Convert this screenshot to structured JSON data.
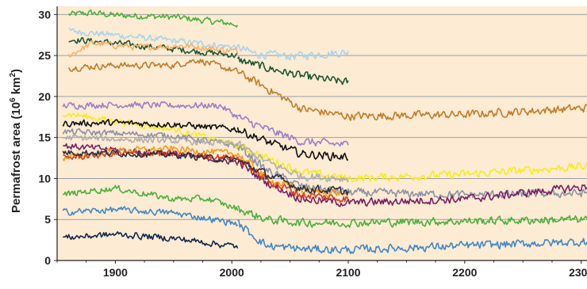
{
  "chart_data": {
    "type": "line",
    "title": "",
    "xlabel": "",
    "ylabel_main": "Permafrost area (10",
    "ylabel_exp": "6",
    "ylabel_unit": " km",
    "ylabel_sup": "2",
    "ylabel_close": ")",
    "xlim": [
      1850,
      2305
    ],
    "ylim": [
      0,
      31
    ],
    "x_ticks": [
      1900,
      2000,
      2100,
      2200,
      2300
    ],
    "x_tick_labels": [
      "1900",
      "2000",
      "2100",
      "2200",
      "2300"
    ],
    "y_ticks": [
      0,
      5,
      10,
      15,
      20,
      25,
      30
    ],
    "y_tick_labels": [
      "0",
      "5",
      "10",
      "15",
      "20",
      "25",
      "30"
    ],
    "grid": "horizontal",
    "background_color": "#fdebd3",
    "grid_color": "#9aa0a6",
    "series": [
      {
        "color": "#4caf3c",
        "end_x": 2005,
        "historical": [
          [
            1860,
            30.0
          ],
          [
            1880,
            30.2
          ],
          [
            1900,
            29.9
          ],
          [
            1950,
            29.7
          ],
          [
            2005,
            28.8
          ]
        ],
        "future": []
      },
      {
        "color": "#a9d4ea",
        "end_x": 2100,
        "historical": [
          [
            1860,
            28.0
          ],
          [
            1900,
            27.5
          ],
          [
            1950,
            26.8
          ],
          [
            2005,
            26.0
          ]
        ],
        "future": [
          [
            2005,
            26.0
          ],
          [
            2020,
            25.2
          ],
          [
            2050,
            24.9
          ],
          [
            2100,
            25.4
          ]
        ]
      },
      {
        "color": "#1e5631",
        "end_x": 2100,
        "historical": [
          [
            1860,
            27.0
          ],
          [
            1900,
            26.5
          ],
          [
            1950,
            25.8
          ],
          [
            2005,
            25.0
          ]
        ],
        "future": [
          [
            2005,
            24.5
          ],
          [
            2030,
            23.5
          ],
          [
            2060,
            22.5
          ],
          [
            2100,
            21.7
          ]
        ]
      },
      {
        "color": "#f6b26b",
        "end_x": 2005,
        "historical": [
          [
            1860,
            25.0
          ],
          [
            1880,
            26.5
          ],
          [
            1920,
            26.0
          ],
          [
            1960,
            26.2
          ],
          [
            2005,
            25.5
          ]
        ],
        "future": []
      },
      {
        "color": "#c27c2a",
        "end_x": 2305,
        "historical": [
          [
            1860,
            23.5
          ],
          [
            1900,
            23.8
          ],
          [
            1950,
            23.8
          ],
          [
            1970,
            24.5
          ],
          [
            2005,
            23.0
          ]
        ],
        "future": [
          [
            2005,
            23.0
          ],
          [
            2030,
            21.0
          ],
          [
            2060,
            18.5
          ],
          [
            2100,
            17.6
          ],
          [
            2200,
            17.8
          ],
          [
            2305,
            18.6
          ]
        ]
      },
      {
        "color": "#9b7fc7",
        "end_x": 2100,
        "historical": [
          [
            1855,
            18.9
          ],
          [
            1900,
            19.0
          ],
          [
            1950,
            18.9
          ],
          [
            1990,
            18.9
          ],
          [
            2005,
            17.5
          ]
        ],
        "future": [
          [
            2005,
            17.5
          ],
          [
            2030,
            16.0
          ],
          [
            2060,
            14.5
          ],
          [
            2100,
            14.1
          ]
        ]
      },
      {
        "color": "#f8ea21",
        "end_x": 2305,
        "historical": [
          [
            1855,
            18.0
          ],
          [
            1900,
            17.0
          ],
          [
            1950,
            16.0
          ],
          [
            2005,
            14.0
          ]
        ],
        "future": [
          [
            2005,
            14.0
          ],
          [
            2030,
            12.5
          ],
          [
            2060,
            10.8
          ],
          [
            2100,
            10.0
          ],
          [
            2200,
            10.5
          ],
          [
            2305,
            11.5
          ]
        ]
      },
      {
        "color": "#111111",
        "end_x": 2100,
        "historical": [
          [
            1855,
            16.7
          ],
          [
            1900,
            16.8
          ],
          [
            1950,
            16.6
          ],
          [
            2005,
            16.0
          ]
        ],
        "future": [
          [
            2005,
            16.0
          ],
          [
            2030,
            14.5
          ],
          [
            2060,
            13.0
          ],
          [
            2100,
            12.6
          ]
        ]
      },
      {
        "color": "#8c93a6",
        "end_x": 2305,
        "historical": [
          [
            1855,
            15.7
          ],
          [
            1900,
            15.5
          ],
          [
            1950,
            15.2
          ],
          [
            2005,
            14.0
          ]
        ],
        "future": [
          [
            2005,
            14.0
          ],
          [
            2030,
            11.0
          ],
          [
            2060,
            9.0
          ],
          [
            2100,
            8.3
          ],
          [
            2200,
            8.0
          ],
          [
            2305,
            8.2
          ]
        ]
      },
      {
        "color": "#b0b0b0",
        "end_x": 2100,
        "historical": [
          [
            1855,
            15.0
          ],
          [
            1900,
            14.8
          ],
          [
            1950,
            14.6
          ],
          [
            2005,
            14.2
          ]
        ],
        "future": [
          [
            2005,
            14.2
          ],
          [
            2030,
            12.0
          ],
          [
            2060,
            10.3
          ],
          [
            2100,
            10.0
          ]
        ]
      },
      {
        "color": "#7a1f63",
        "end_x": 2305,
        "historical": [
          [
            1855,
            14.0
          ],
          [
            1900,
            13.5
          ],
          [
            1950,
            13.0
          ],
          [
            2005,
            12.0
          ]
        ],
        "future": [
          [
            2005,
            12.0
          ],
          [
            2030,
            9.5
          ],
          [
            2060,
            7.5
          ],
          [
            2100,
            7.0
          ],
          [
            2200,
            7.5
          ],
          [
            2305,
            9.0
          ]
        ]
      },
      {
        "color": "#f39a1c",
        "end_x": 2100,
        "historical": [
          [
            1855,
            12.5
          ],
          [
            1900,
            13.4
          ],
          [
            1950,
            13.6
          ],
          [
            2005,
            13.0
          ]
        ],
        "future": [
          [
            2005,
            13.0
          ],
          [
            2030,
            10.0
          ],
          [
            2060,
            8.5
          ],
          [
            2100,
            8.2
          ]
        ]
      },
      {
        "color": "#d9401f",
        "end_x": 2100,
        "historical": [
          [
            1855,
            12.5
          ],
          [
            1900,
            13.0
          ],
          [
            1950,
            13.0
          ],
          [
            2005,
            12.5
          ]
        ],
        "future": [
          [
            2005,
            12.5
          ],
          [
            2030,
            9.8
          ],
          [
            2060,
            8.0
          ],
          [
            2100,
            7.5
          ]
        ]
      },
      {
        "color": "#2a2f45",
        "end_x": 2100,
        "historical": [
          [
            1855,
            13.2
          ],
          [
            1900,
            13.1
          ],
          [
            1950,
            12.9
          ],
          [
            2005,
            12.2
          ]
        ],
        "future": [
          [
            2005,
            12.2
          ],
          [
            2030,
            10.5
          ],
          [
            2060,
            8.8
          ],
          [
            2100,
            8.4
          ]
        ]
      },
      {
        "color": "#4caf3c",
        "end_x": 2305,
        "historical": [
          [
            1855,
            8.0
          ],
          [
            1880,
            8.5
          ],
          [
            1900,
            8.8
          ],
          [
            1950,
            7.5
          ],
          [
            1980,
            7.5
          ],
          [
            2005,
            6.3
          ]
        ],
        "future": [
          [
            2005,
            6.3
          ],
          [
            2030,
            5.0
          ],
          [
            2060,
            4.6
          ],
          [
            2100,
            4.6
          ],
          [
            2200,
            4.8
          ],
          [
            2305,
            5.0
          ]
        ]
      },
      {
        "color": "#3f88c5",
        "end_x": 2305,
        "historical": [
          [
            1855,
            5.9
          ],
          [
            1900,
            6.2
          ],
          [
            1950,
            5.8
          ],
          [
            2005,
            4.5
          ]
        ],
        "future": [
          [
            2005,
            4.5
          ],
          [
            2030,
            1.8
          ],
          [
            2060,
            1.4
          ],
          [
            2100,
            1.3
          ],
          [
            2200,
            1.8
          ],
          [
            2305,
            2.3
          ]
        ]
      },
      {
        "color": "#12284a",
        "end_x": 2005,
        "historical": [
          [
            1855,
            2.8
          ],
          [
            1880,
            3.0
          ],
          [
            1900,
            3.2
          ],
          [
            1950,
            2.7
          ],
          [
            2005,
            1.7
          ]
        ],
        "future": []
      }
    ]
  }
}
